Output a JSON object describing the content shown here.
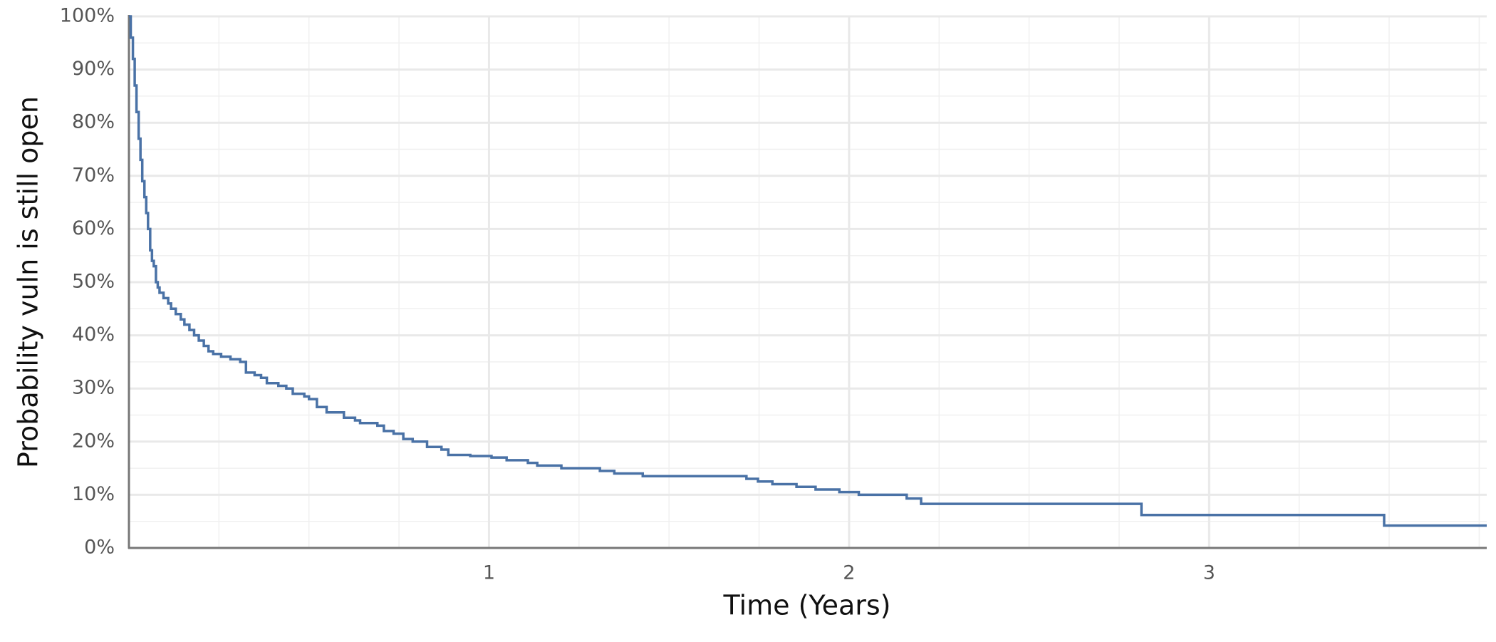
{
  "chart_data": {
    "type": "line",
    "step": true,
    "xlabel": "Time (Years)",
    "ylabel": "Probability vuln is still open",
    "color": "#4a72a6",
    "grid": true,
    "xlim": [
      0,
      3.771
    ],
    "ylim": [
      0,
      100
    ],
    "xticks": [
      1,
      2,
      3
    ],
    "yticks": [
      {
        "value": 0,
        "label": "0%"
      },
      {
        "value": 10,
        "label": "10%"
      },
      {
        "value": 20,
        "label": "20%"
      },
      {
        "value": 30,
        "label": "30%"
      },
      {
        "value": 40,
        "label": "40%"
      },
      {
        "value": 50,
        "label": "50%"
      },
      {
        "value": 60,
        "label": "60%"
      },
      {
        "value": 70,
        "label": "70%"
      },
      {
        "value": 80,
        "label": "80%"
      },
      {
        "value": 90,
        "label": "90%"
      },
      {
        "value": 100,
        "label": "100%"
      }
    ],
    "x": [
      0,
      0.005,
      0.011,
      0.016,
      0.021,
      0.027,
      0.032,
      0.037,
      0.043,
      0.048,
      0.053,
      0.059,
      0.064,
      0.069,
      0.075,
      0.08,
      0.085,
      0.096,
      0.109,
      0.117,
      0.13,
      0.144,
      0.154,
      0.168,
      0.181,
      0.194,
      0.208,
      0.221,
      0.234,
      0.256,
      0.282,
      0.309,
      0.325,
      0.349,
      0.367,
      0.383,
      0.415,
      0.437,
      0.455,
      0.487,
      0.5,
      0.522,
      0.549,
      0.597,
      0.628,
      0.642,
      0.69,
      0.708,
      0.735,
      0.762,
      0.788,
      0.828,
      0.868,
      0.887,
      0.948,
      1.007,
      1.049,
      1.108,
      1.134,
      1.201,
      1.308,
      1.348,
      1.427,
      1.715,
      1.747,
      1.787,
      1.854,
      1.907,
      1.973,
      2.027,
      2.16,
      2.2,
      2.812,
      3.486,
      3.771
    ],
    "values": [
      100,
      96,
      92,
      87,
      82,
      77,
      73,
      69,
      66,
      63,
      60,
      56,
      54,
      53,
      50,
      49,
      48,
      47,
      46,
      45,
      44,
      43,
      42,
      41,
      40,
      39,
      38,
      37,
      36.5,
      36,
      35.5,
      35,
      33,
      32.5,
      32,
      31,
      30.5,
      30,
      29,
      28.5,
      28,
      26.5,
      25.5,
      24.5,
      24,
      23.5,
      23,
      22,
      21.5,
      20.5,
      20,
      19,
      18.5,
      17.5,
      17.3,
      17,
      16.5,
      16,
      15.5,
      15,
      14.5,
      14,
      13.5,
      13,
      12.5,
      12,
      11.5,
      11,
      10.5,
      10,
      9.3,
      8.3,
      6.2,
      4.2,
      4.2
    ]
  }
}
